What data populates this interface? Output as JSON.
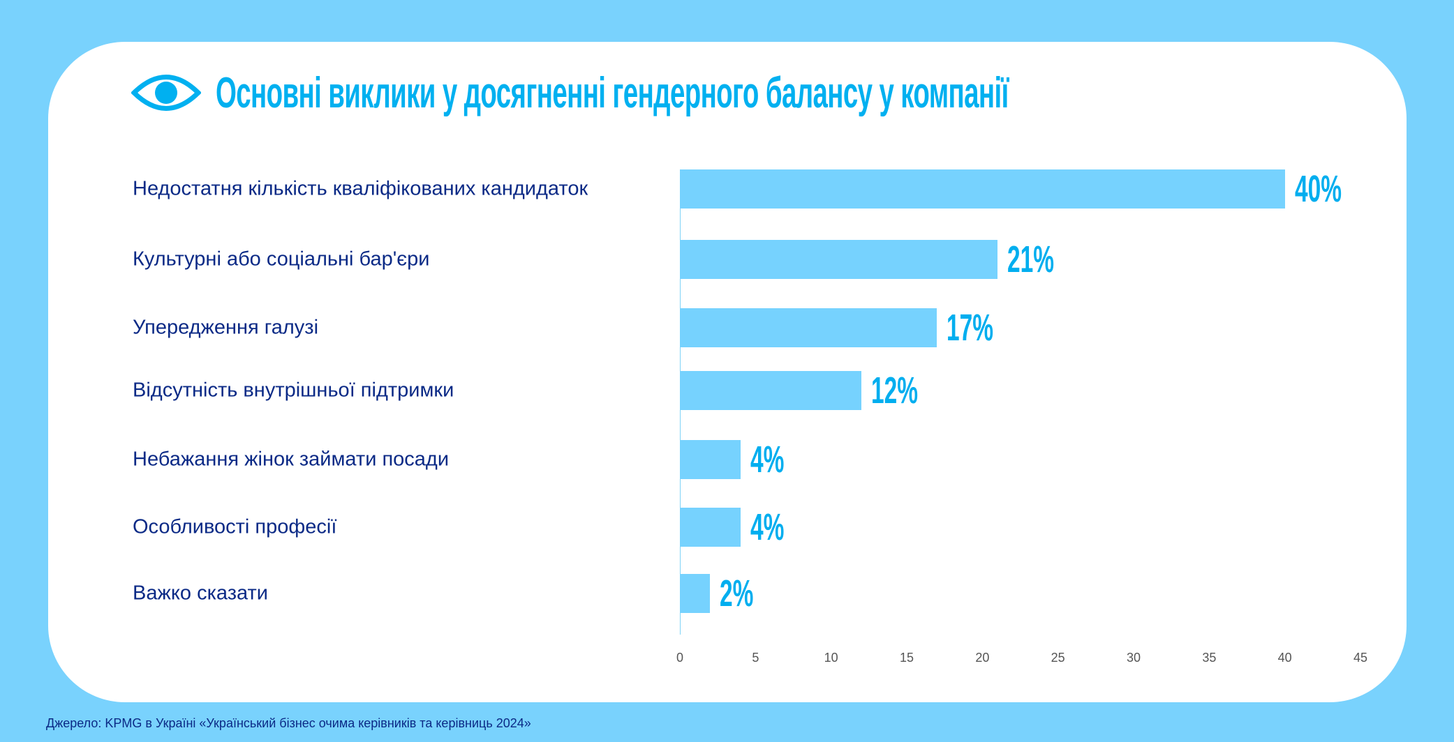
{
  "chart_data": {
    "type": "bar",
    "orientation": "horizontal",
    "title": "Основні виклики у досягненні гендерного балансу у компанії",
    "categories": [
      "Недостатня кількість кваліфікованих кандидаток",
      "Культурні або соціальні бар'єри",
      "Упередження галузі",
      "Відсутність внутрішньої підтримки",
      "Небажання жінок займати посади",
      "Особливості професії",
      "Важко сказати"
    ],
    "values": [
      40,
      21,
      17,
      12,
      4,
      4,
      2
    ],
    "value_labels": [
      "40%",
      "21%",
      "17%",
      "12%",
      "4%",
      "4%",
      "2%"
    ],
    "xlim": [
      0,
      45
    ],
    "xticks": [
      "0",
      "5",
      "10",
      "15",
      "20",
      "25",
      "30",
      "35",
      "40",
      "45"
    ],
    "grid": false,
    "colors": {
      "bar": "#76d2fe",
      "value": "#00aeef",
      "label": "#0b2a86",
      "background": "#79d2fd"
    }
  },
  "source": "Джерело: KPMG в Україні «Український бізнес очима керівників та керівниць 2024»"
}
